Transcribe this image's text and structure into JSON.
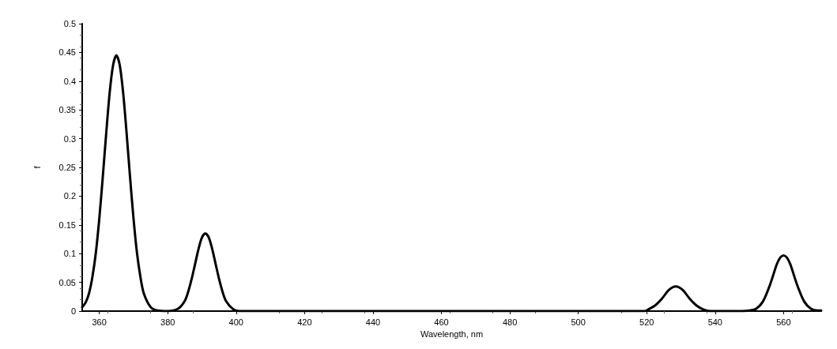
{
  "chart_data": {
    "type": "line",
    "xlabel": "Wavelength, nm",
    "ylabel": "f",
    "x": [
      355,
      356,
      357,
      358,
      359,
      360,
      361,
      362,
      363,
      364,
      365,
      366,
      367,
      368,
      369,
      370,
      371,
      372,
      373,
      375,
      377,
      380,
      383,
      385,
      386,
      387,
      388,
      389,
      390,
      391,
      392,
      393,
      394,
      395,
      396,
      397,
      399,
      401,
      405,
      450,
      500,
      518,
      519.5,
      520.5,
      522.5,
      524.5,
      526.5,
      528.5,
      530.5,
      532.5,
      534.5,
      536.5,
      538.5,
      545,
      548,
      550,
      552,
      554,
      556,
      558,
      559,
      560,
      561,
      562,
      564,
      566,
      568,
      570,
      571
    ],
    "series": [
      {
        "color": "#000000",
        "values": [
          0.007,
          0.015,
          0.031,
          0.06,
          0.102,
          0.161,
          0.232,
          0.308,
          0.378,
          0.427,
          0.445,
          0.427,
          0.378,
          0.308,
          0.232,
          0.161,
          0.102,
          0.06,
          0.031,
          0.007,
          0.001,
          0,
          0.004,
          0.018,
          0.034,
          0.056,
          0.082,
          0.108,
          0.128,
          0.135,
          0.128,
          0.108,
          0.082,
          0.056,
          0.034,
          0.018,
          0.004,
          0,
          0,
          0,
          0,
          0,
          0,
          0.003,
          0.01,
          0.022,
          0.037,
          0.043,
          0.037,
          0.022,
          0.01,
          0.003,
          0,
          0,
          0,
          0.001,
          0.004,
          0.017,
          0.045,
          0.081,
          0.093,
          0.097,
          0.093,
          0.081,
          0.045,
          0.017,
          0.004,
          0.001,
          0.001
        ]
      }
    ],
    "xlim": [
      355,
      571
    ],
    "xticks": [
      360,
      380,
      400,
      420,
      440,
      460,
      480,
      500,
      520,
      540,
      560
    ],
    "ylim": [
      0,
      0.5
    ],
    "yticks": [
      0,
      0.05,
      0.1,
      0.15,
      0.2,
      0.25,
      0.3,
      0.35,
      0.4,
      0.45,
      0.5
    ],
    "grid": false,
    "marker": "none",
    "line_style": "solid"
  }
}
